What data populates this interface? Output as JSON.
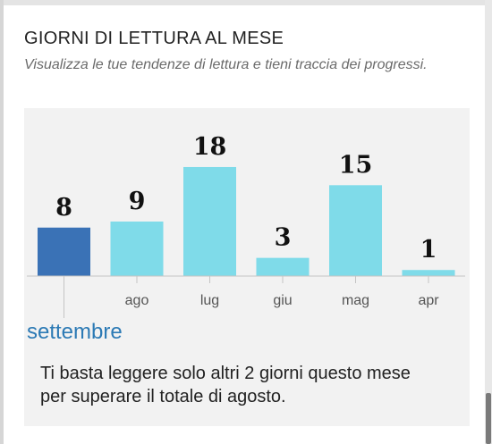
{
  "card": {
    "title": "GIORNI DI LETTURA AL MESE",
    "subtitle": "Visualizza le tue tendenze di lettura e tieni traccia dei progressi."
  },
  "chart_data": {
    "type": "bar",
    "categories": [
      "settembre",
      "ago",
      "lug",
      "giu",
      "mag",
      "apr"
    ],
    "values": [
      8,
      9,
      18,
      3,
      15,
      1
    ],
    "selected_index": 0,
    "ylim": [
      0,
      20
    ],
    "grid": false,
    "colors": {
      "selected": "#3a72b6",
      "default": "#7fdbe9",
      "axis": "#c4c4c4"
    }
  },
  "selected_month_label": "settembre",
  "message": "Ti basta leggere solo altri 2 giorni questo mese per superare il totale di agosto."
}
